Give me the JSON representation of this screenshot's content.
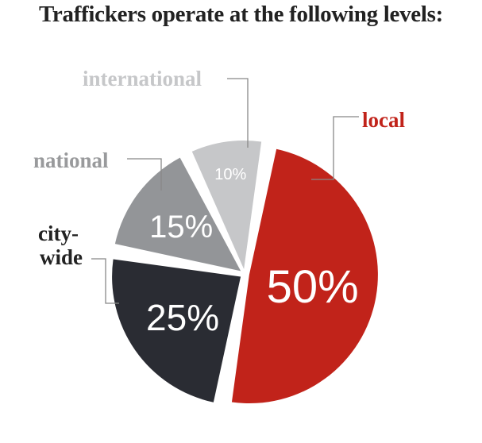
{
  "chart_data": {
    "type": "pie",
    "title": "Traffickers operate at the following levels:",
    "categories": [
      "local",
      "city-wide",
      "national",
      "international"
    ],
    "values": [
      50,
      25,
      15,
      10
    ],
    "data_labels": [
      "50%",
      "25%",
      "15%",
      "10%"
    ],
    "colors": [
      "#c1231a",
      "#2a2c33",
      "#939598",
      "#c6c7c9"
    ],
    "category_label_colors": [
      "#c1231a",
      "#222222",
      "#999a9c",
      "#c6c7c9"
    ],
    "legend": "none"
  }
}
